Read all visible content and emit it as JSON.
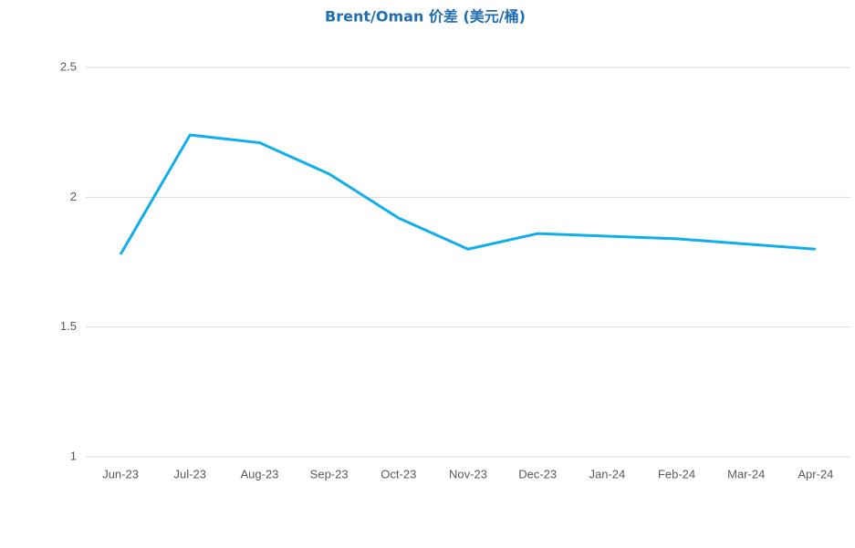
{
  "chart_data": {
    "type": "line",
    "title": "Brent/Oman 价差 (美元/桶)",
    "categories": [
      "Jun-23",
      "Jul-23",
      "Aug-23",
      "Sep-23",
      "Oct-23",
      "Nov-23",
      "Dec-23",
      "Jan-24",
      "Feb-24",
      "Mar-24",
      "Apr-24"
    ],
    "series": [
      {
        "color": "#10aeea",
        "values": [
          1.78,
          2.24,
          2.21,
          2.09,
          1.92,
          1.8,
          1.86,
          1.85,
          1.84,
          1.82,
          1.8
        ]
      }
    ],
    "ylim": [
      1,
      2.5
    ],
    "yticks": [
      1,
      1.5,
      2,
      2.5
    ],
    "grid": true
  }
}
